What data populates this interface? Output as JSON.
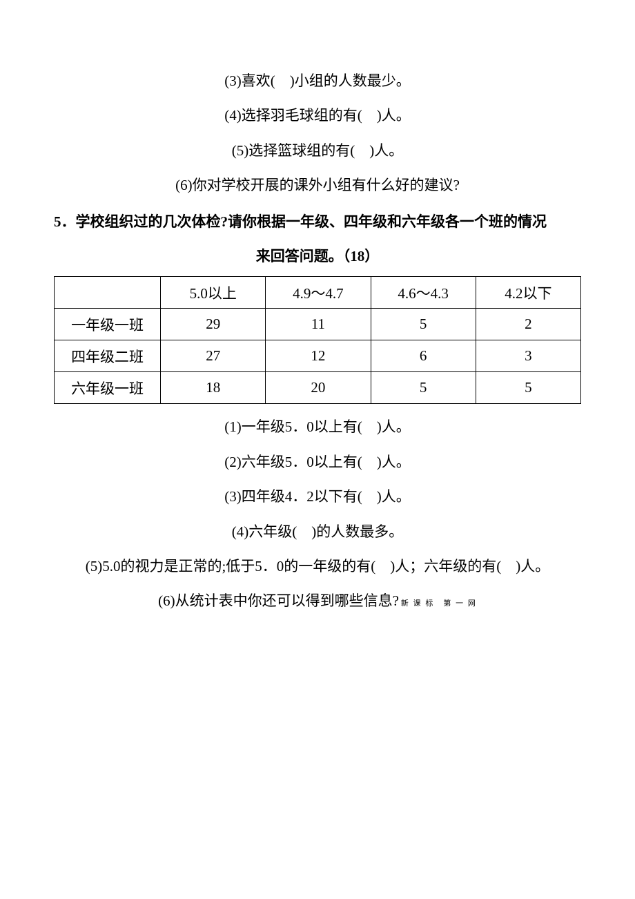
{
  "q_prev": {
    "item3": "(3)喜欢(　)小组的人数最少。",
    "item4": "(4)选择羽毛球组的有(　)人。",
    "item5": "(5)选择篮球组的有(　)人。",
    "item6": "(6)你对学校开展的课外小组有什么好的建议?"
  },
  "q5": {
    "title_line1": "5．学校组织过的几次体检?请你根据一年级、四年级和六年级各一个班的情况",
    "title_line2": "来回答问题。（18）",
    "table": {
      "headers": [
        "",
        "5.0以上",
        "4.9～4.7",
        "4.6～4.3",
        "4.2以下"
      ],
      "rows": [
        [
          "一年级一班",
          "29",
          "11",
          "5",
          "2"
        ],
        [
          "四年级二班",
          "27",
          "12",
          "6",
          "3"
        ],
        [
          "六年级一班",
          "18",
          "20",
          "5",
          "5"
        ]
      ]
    },
    "item1": "(1)一年级5．0以上有(　)人。",
    "item2": "(2)六年级5．0以上有(　)人。",
    "item3": "(3)四年级4．2以下有(　)人。",
    "item4": "(4)六年级(　)的人数最多。",
    "item5": "(5)5.0的视力是正常的;低于5．0的一年级的有(　)人；六年级的有(　)人。",
    "item6": "(6)从统计表中你还可以得到哪些信息?",
    "footnote": "新 课 标　第 一 网"
  }
}
